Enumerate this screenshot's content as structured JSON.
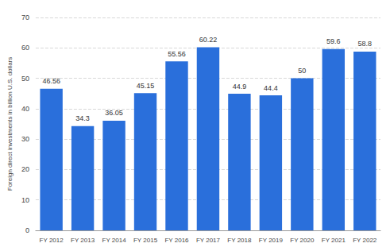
{
  "chart_data": {
    "type": "bar",
    "y_label": "Foreign direct investments in billion U.S. dollars",
    "categories": [
      "FY 2012",
      "FY 2013",
      "FY 2014",
      "FY 2015",
      "FY 2016",
      "FY 2017",
      "FY 2018",
      "FY 2019",
      "FY 2020",
      "FY 2021",
      "FY 2022"
    ],
    "values": [
      46.56,
      34.3,
      36.05,
      45.15,
      55.56,
      60.22,
      44.9,
      44.4,
      50,
      59.6,
      58.8
    ],
    "color": "#2a6fdb",
    "ylim": [
      0,
      70
    ],
    "yticks": [
      0,
      10,
      20,
      30,
      40,
      50,
      60,
      70
    ],
    "grid": true,
    "data_labels": true
  }
}
